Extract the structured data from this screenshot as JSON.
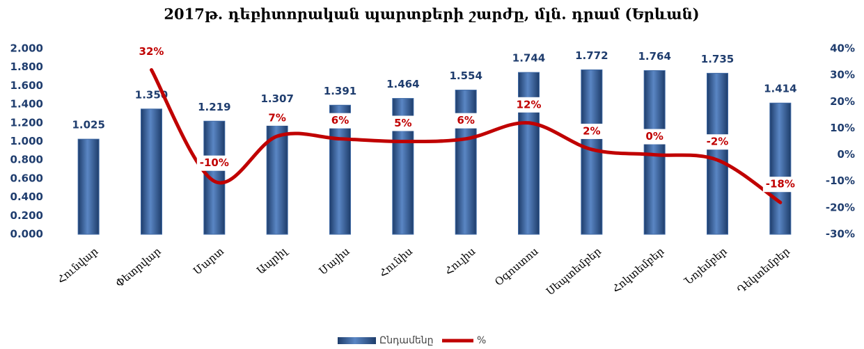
{
  "chart_data": {
    "type": "bar",
    "title": "2017թ. դեբիտորական պարտքերի շարժը, մլն. դրամ (Երևան)",
    "categories": [
      "Հունվար",
      "Փետրվար",
      "Մարտ",
      "Ապրիլ",
      "Մայիս",
      "Հունիս",
      "Հուլիս",
      "Օգոստոս",
      "Սեպտեմբեր",
      "Հոկտեմբեր",
      "Նոյեմբեր",
      "Դեկտեմբեր"
    ],
    "series": [
      {
        "name": "Ընդամենը",
        "type": "bar",
        "color": "#3f6aa6",
        "values": [
          1.025,
          1.35,
          1.219,
          1.307,
          1.391,
          1.464,
          1.554,
          1.744,
          1.772,
          1.764,
          1.735,
          1.414
        ],
        "value_labels": [
          "1.025",
          "1.350",
          "1.219",
          "1.307",
          "1.391",
          "1.464",
          "1.554",
          "1.744",
          "1.772",
          "1.764",
          "1.735",
          "1.414"
        ]
      },
      {
        "name": "%",
        "type": "line",
        "axis": "y2",
        "color": "#c00000",
        "values": [
          null,
          32,
          -10,
          7,
          6,
          5,
          6,
          12,
          2,
          0,
          -2,
          -18
        ],
        "value_labels": [
          null,
          "32%",
          "-10%",
          "7%",
          "6%",
          "5%",
          "6%",
          "12%",
          "2%",
          "0%",
          "-2%",
          "-18%"
        ]
      }
    ],
    "ylim": [
      0,
      2
    ],
    "yticks": [
      {
        "value": 0,
        "label": "0.000"
      },
      {
        "value": 0.2,
        "label": "0.200"
      },
      {
        "value": 0.4,
        "label": "0.400"
      },
      {
        "value": 0.6,
        "label": "0.600"
      },
      {
        "value": 0.8,
        "label": "0.800"
      },
      {
        "value": 1,
        "label": "1.000"
      },
      {
        "value": 1.2,
        "label": "1.200"
      },
      {
        "value": 1.4,
        "label": "1.400"
      },
      {
        "value": 1.6,
        "label": "1.600"
      },
      {
        "value": 1.8,
        "label": "1.800"
      },
      {
        "value": 2,
        "label": "2.000"
      }
    ],
    "y2lim": [
      -30,
      40
    ],
    "y2ticks": [
      {
        "value": -30,
        "label": "-30%"
      },
      {
        "value": -20,
        "label": "-20%"
      },
      {
        "value": -10,
        "label": "-10%"
      },
      {
        "value": 0,
        "label": "0%"
      },
      {
        "value": 10,
        "label": "10%"
      },
      {
        "value": 20,
        "label": "20%"
      },
      {
        "value": 30,
        "label": "30%"
      },
      {
        "value": 40,
        "label": "40%"
      }
    ],
    "legend": "bottom"
  }
}
